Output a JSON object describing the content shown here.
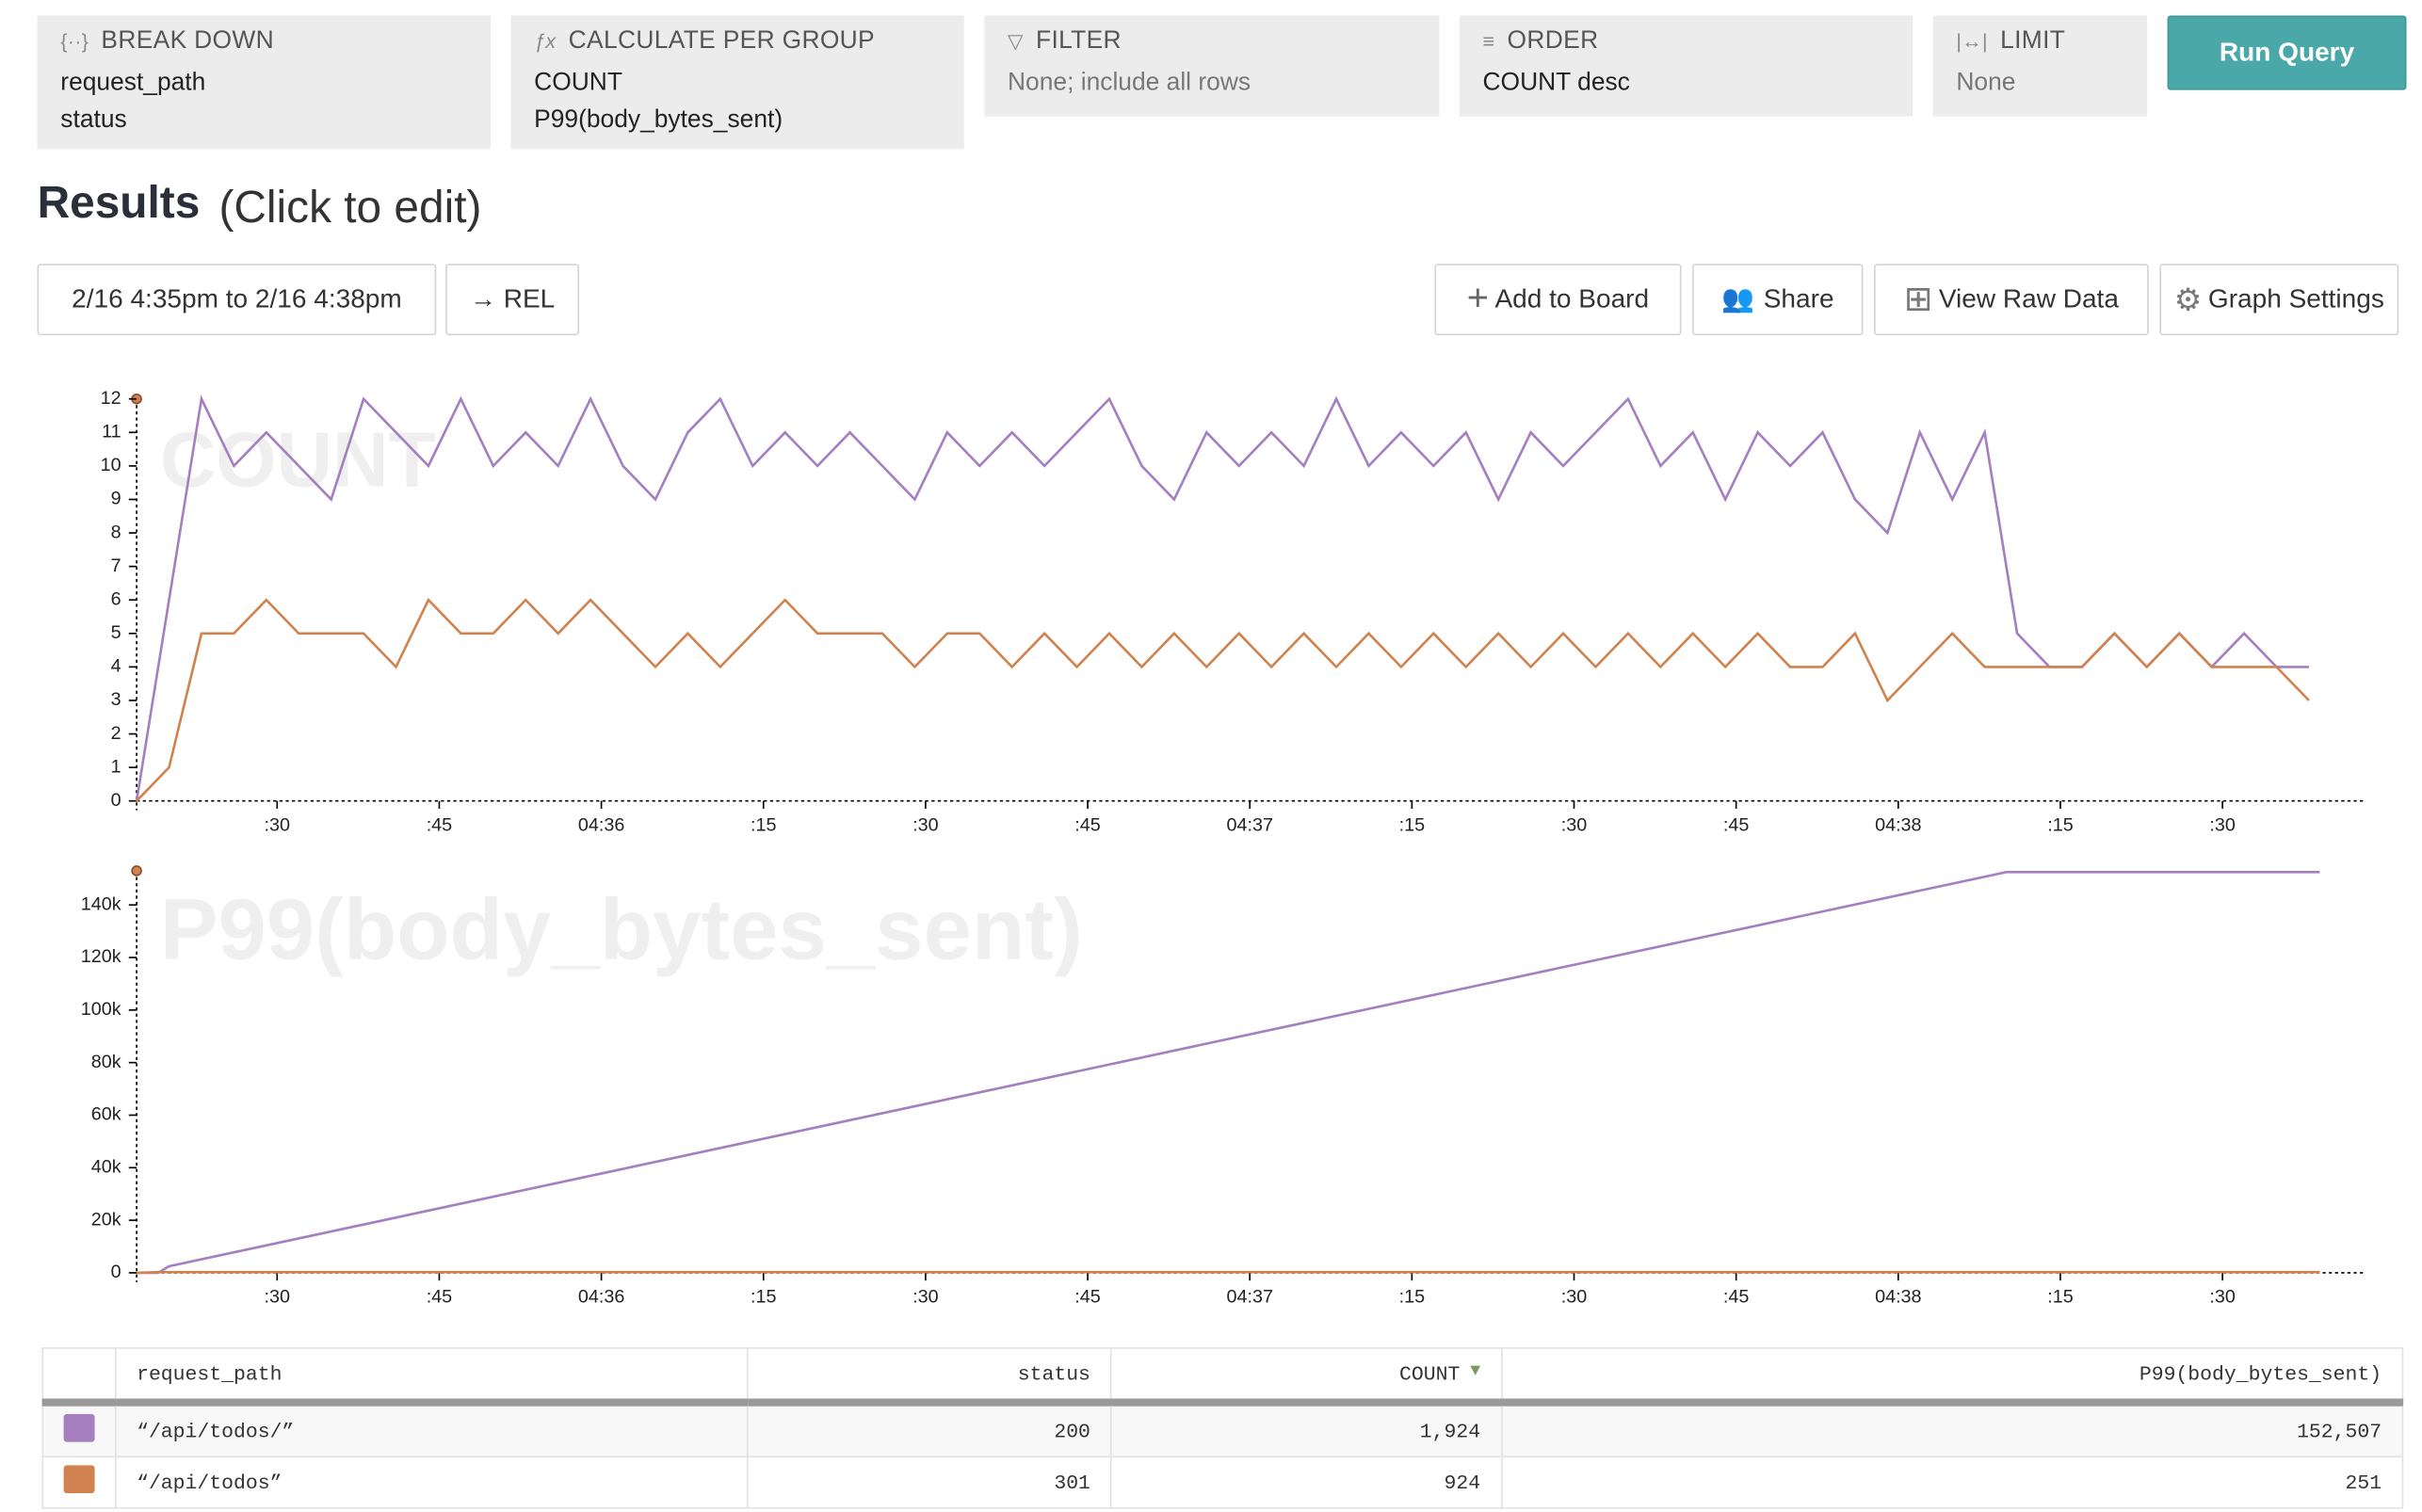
{
  "query": {
    "breakdown": {
      "label": "BREAK DOWN",
      "items": [
        "request_path",
        "status"
      ]
    },
    "calculate": {
      "label": "CALCULATE PER GROUP",
      "items": [
        "COUNT",
        "P99(body_bytes_sent)"
      ]
    },
    "filter": {
      "label": "FILTER",
      "items": [
        "None; include all rows"
      ]
    },
    "order": {
      "label": "ORDER",
      "items": [
        "COUNT desc"
      ]
    },
    "limit": {
      "label": "LIMIT",
      "items": [
        "None"
      ]
    },
    "run": "Run Query"
  },
  "results": {
    "title": "Results",
    "hint": "(Click to edit)",
    "time_range": "2/16 4:35pm to 2/16 4:38pm",
    "rel": "→ REL",
    "actions": [
      "Add to Board",
      "Share",
      "View Raw Data",
      "Graph Settings"
    ]
  },
  "chart_data": [
    {
      "type": "line",
      "title": "COUNT",
      "x": [
        17,
        20,
        23,
        26,
        29,
        32,
        35,
        38,
        41,
        44,
        47,
        50,
        53,
        56,
        59,
        62,
        65,
        68,
        71,
        74,
        77,
        80,
        83,
        86,
        89,
        92,
        95,
        98,
        101,
        104,
        107,
        110,
        113,
        116,
        119,
        122,
        125,
        128,
        131,
        134,
        137,
        140,
        143,
        146,
        149,
        152,
        155,
        158,
        161,
        164,
        167,
        170,
        173,
        176,
        179,
        182,
        185,
        188,
        191,
        194,
        197,
        200,
        203,
        206,
        209,
        212,
        215,
        218
      ],
      "series": [
        {
          "color": "#a57fc0",
          "values": [
            0,
            6,
            12,
            10,
            11,
            10,
            9,
            12,
            11,
            10,
            12,
            10,
            11,
            10,
            12,
            10,
            9,
            11,
            12,
            10,
            11,
            10,
            11,
            10,
            9,
            11,
            10,
            11,
            10,
            11,
            12,
            10,
            9,
            11,
            10,
            11,
            10,
            12,
            10,
            11,
            10,
            11,
            9,
            11,
            10,
            11,
            12,
            10,
            11,
            9,
            11,
            10,
            11,
            9,
            8,
            11,
            9,
            11,
            5,
            4,
            4,
            5,
            4,
            5,
            4,
            5,
            4,
            4
          ]
        },
        {
          "color": "#d0834e",
          "values": [
            0,
            1,
            5,
            5,
            6,
            5,
            5,
            5,
            4,
            6,
            5,
            5,
            6,
            5,
            6,
            5,
            4,
            5,
            4,
            5,
            6,
            5,
            5,
            5,
            4,
            5,
            5,
            4,
            5,
            4,
            5,
            4,
            5,
            4,
            5,
            4,
            5,
            4,
            5,
            4,
            5,
            4,
            5,
            4,
            5,
            4,
            5,
            4,
            5,
            4,
            5,
            4,
            4,
            5,
            3,
            4,
            5,
            4,
            4,
            4,
            4,
            5,
            4,
            5,
            4,
            4,
            4,
            3
          ]
        }
      ],
      "xlim": [
        17,
        223
      ],
      "xticks": [
        {
          "value": 30,
          "label": ":30"
        },
        {
          "value": 45,
          "label": ":45"
        },
        {
          "value": 60,
          "label": "04:36"
        },
        {
          "value": 75,
          "label": ":15"
        },
        {
          "value": 90,
          "label": ":30"
        },
        {
          "value": 105,
          "label": ":45"
        },
        {
          "value": 120,
          "label": "04:37"
        },
        {
          "value": 135,
          "label": ":15"
        },
        {
          "value": 150,
          "label": ":30"
        },
        {
          "value": 165,
          "label": ":45"
        },
        {
          "value": 180,
          "label": "04:38"
        },
        {
          "value": 195,
          "label": ":15"
        },
        {
          "value": 210,
          "label": ":30"
        }
      ],
      "ylim": [
        0,
        12
      ],
      "yticks": [
        0,
        1,
        2,
        3,
        4,
        5,
        6,
        7,
        8,
        9,
        10,
        11,
        12
      ]
    },
    {
      "type": "line",
      "title": "P99(body_bytes_sent)",
      "x": [
        17,
        19,
        20,
        190,
        219
      ],
      "series": [
        {
          "color": "#a57fc0",
          "values": [
            0,
            0,
            2500,
            152507,
            152507
          ]
        },
        {
          "color": "#d0834e",
          "values": [
            0,
            251,
            251,
            251,
            251
          ]
        }
      ],
      "xlim": [
        17,
        223
      ],
      "xticks": [
        {
          "value": 30,
          "label": ":30"
        },
        {
          "value": 45,
          "label": ":45"
        },
        {
          "value": 60,
          "label": "04:36"
        },
        {
          "value": 75,
          "label": ":15"
        },
        {
          "value": 90,
          "label": ":30"
        },
        {
          "value": 105,
          "label": ":45"
        },
        {
          "value": 120,
          "label": "04:37"
        },
        {
          "value": 135,
          "label": ":15"
        },
        {
          "value": 150,
          "label": ":30"
        },
        {
          "value": 165,
          "label": ":45"
        },
        {
          "value": 180,
          "label": "04:38"
        },
        {
          "value": 195,
          "label": ":15"
        },
        {
          "value": 210,
          "label": ":30"
        }
      ],
      "ylim": [
        0,
        153000
      ],
      "yticks": [
        0,
        {
          "value": 20000,
          "label": "20k"
        },
        {
          "value": 40000,
          "label": "40k"
        },
        {
          "value": 60000,
          "label": "60k"
        },
        {
          "value": 80000,
          "label": "80k"
        },
        {
          "value": 100000,
          "label": "100k"
        },
        {
          "value": 120000,
          "label": "120k"
        },
        {
          "value": 140000,
          "label": "140k"
        }
      ]
    }
  ],
  "table": {
    "headers": [
      "request_path",
      "status",
      "COUNT",
      "P99(body_bytes_sent)"
    ],
    "rows": [
      [
        "“/api/todos/”",
        "200",
        "1,924",
        "152,507"
      ],
      [
        "“/api/todos”",
        "301",
        "924",
        "251"
      ]
    ]
  }
}
